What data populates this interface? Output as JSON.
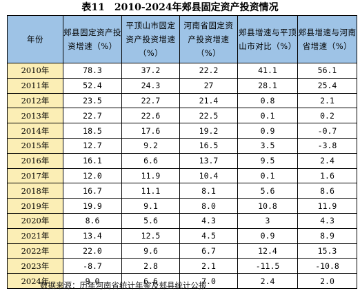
{
  "title": "表11　2010-2024年郏县固定资产投资情况",
  "headers": [
    "年份",
    "郏县固定资产投资增速（%）",
    "平顶山市固定资产投资增速（%）",
    "河南省固定资产投资增速（%）",
    "郏县增速与平顶山市对比（%）",
    "郏县增速与河南省增速（%）"
  ],
  "rows": [
    [
      "2010年",
      "78.3",
      "37.2",
      "22.2",
      "41.1",
      "56.1"
    ],
    [
      "2011年",
      "52.4",
      "24.3",
      "27",
      "28.1",
      "25.4"
    ],
    [
      "2012年",
      "23.5",
      "22.7",
      "21.4",
      "0.8",
      "2.1"
    ],
    [
      "2013年",
      "22.7",
      "22.6",
      "22.5",
      "0.1",
      "0.2"
    ],
    [
      "2014年",
      "18.5",
      "17.6",
      "19.2",
      "0.9",
      "-0.7"
    ],
    [
      "2015年",
      "12.7",
      "9.2",
      "16.5",
      "3.5",
      "-3.8"
    ],
    [
      "2016年",
      "16.1",
      "6.6",
      "13.7",
      "9.5",
      "2.4"
    ],
    [
      "2017年",
      "12.0",
      "11.9",
      "10.4",
      "0.1",
      "1.6"
    ],
    [
      "2018年",
      "16.7",
      "11.1",
      "8.1",
      "5.6",
      "8.6"
    ],
    [
      "2019年",
      "19.9",
      "9.1",
      "8.0",
      "10.8",
      "11.9"
    ],
    [
      "2020年",
      "8.6",
      "5.6",
      "4.3",
      "3",
      "4.3"
    ],
    [
      "2021年",
      "13.4",
      "12.5",
      "4.5",
      "0.9",
      "8.9"
    ],
    [
      "2022年",
      "22.0",
      "9.6",
      "6.7",
      "12.4",
      "15.3"
    ],
    [
      "2023年",
      "-8.7",
      "2.8",
      "2.1",
      "-11.5",
      "-10.8"
    ],
    [
      "2024年",
      "9.0",
      "6.6",
      "7.0",
      "2.4",
      "2.0"
    ]
  ],
  "source": "数据来源：历年河南省统计年鉴及郏县统计公报",
  "colors": {
    "header_bg": "#9ec3e6",
    "year_bg": "#fbeeb5"
  }
}
